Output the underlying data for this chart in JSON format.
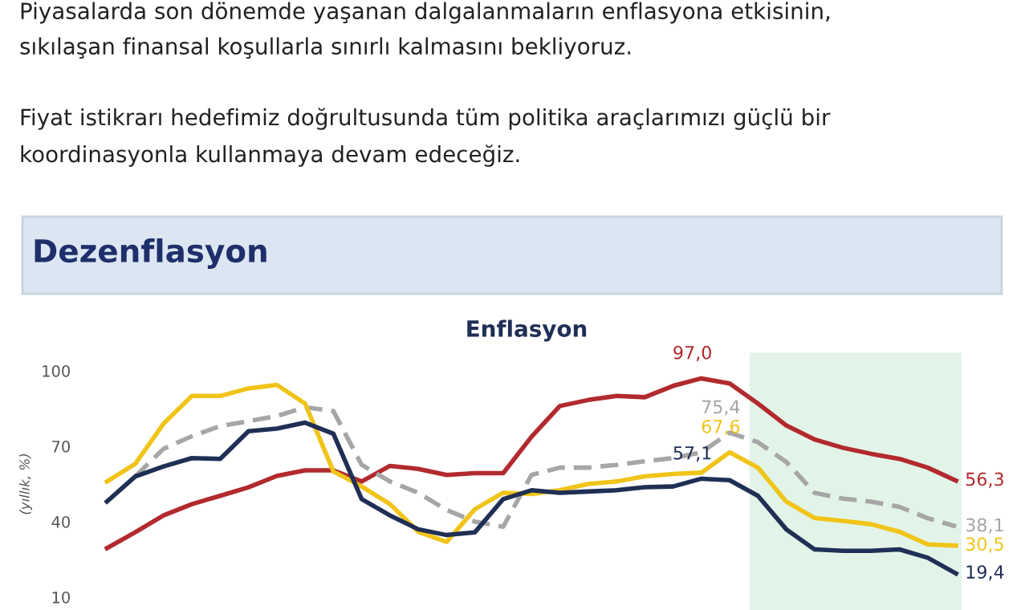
{
  "chart_data": {
    "type": "line",
    "title": "Dezenflasyon",
    "subtitle": "Enflasyon",
    "ylabel": "(yıllık, %)",
    "annotations": [
      "Piyasalarda son dönemde yaşanan dalgalanmaların enflasyona etkisinin,",
      "sıkılaşan finansal koşullarla sınırlı kalmasını bekliyoruz.",
      "Fiyat istikrarı hedefimiz doğrultusunda tüm politika araçlarımızı güçlü bir",
      "koordinasyonla kullanmaya devam edeceğiz."
    ],
    "categories": [
      null,
      null,
      null,
      null,
      null,
      null,
      null,
      null,
      null,
      null,
      null,
      null,
      null,
      null,
      null,
      null,
      null,
      null,
      null,
      null,
      null,
      null,
      null,
      null,
      null,
      null,
      null,
      null,
      null,
      null,
      null
    ],
    "series": [
      {
        "color": "#b22a2e",
        "line_style": "solid",
        "values": [
          29.5,
          35.8,
          42.5,
          47,
          50.3,
          53.7,
          58.2,
          60.4,
          60.4,
          56,
          62.2,
          61,
          58.6,
          59.3,
          59.3,
          73.8,
          86,
          88.4,
          90,
          89.5,
          94,
          97.0,
          95,
          87,
          78.3,
          72.7,
          69.4,
          67,
          65,
          61.5,
          56.3
        ],
        "value_labels": [
          null,
          null,
          null,
          null,
          null,
          null,
          null,
          null,
          null,
          null,
          null,
          null,
          null,
          null,
          null,
          null,
          null,
          null,
          null,
          null,
          null,
          "97,0",
          null,
          null,
          null,
          null,
          null,
          null,
          null,
          null,
          "56,3"
        ]
      },
      {
        "color": "#a6a6a6",
        "line_style": "dashed",
        "values": [
          null,
          58,
          69,
          74,
          78,
          80,
          82,
          85.5,
          84,
          62.6,
          56,
          51.5,
          44.7,
          40,
          38,
          58.6,
          61.5,
          61.5,
          62.6,
          64,
          65.3,
          67.6,
          75.4,
          71.6,
          63.8,
          51.5,
          49.2,
          48,
          45.9,
          41.4,
          38.1
        ],
        "value_labels": [
          null,
          null,
          null,
          null,
          null,
          null,
          null,
          null,
          null,
          null,
          null,
          null,
          null,
          null,
          null,
          null,
          null,
          null,
          null,
          null,
          null,
          null,
          "75,4",
          null,
          null,
          null,
          null,
          null,
          null,
          null,
          "38,1"
        ]
      },
      {
        "color": "#f0c419",
        "line_style": "solid",
        "values": [
          56,
          63,
          79,
          90,
          90,
          93,
          94.4,
          87,
          60,
          54,
          47,
          36,
          32,
          45,
          51.5,
          51,
          52.5,
          55,
          56,
          58,
          59,
          59.5,
          67.6,
          61.5,
          48,
          41.5,
          40.3,
          39,
          36,
          31,
          30.5
        ],
        "value_labels": [
          null,
          null,
          null,
          null,
          null,
          null,
          null,
          null,
          null,
          null,
          null,
          null,
          null,
          null,
          null,
          null,
          null,
          null,
          null,
          null,
          null,
          null,
          "67,6",
          null,
          null,
          null,
          null,
          null,
          null,
          null,
          "30,5"
        ]
      },
      {
        "color": "#1f2f55",
        "line_style": "solid",
        "values": [
          48,
          58,
          62,
          65.3,
          65,
          76,
          77,
          79.4,
          75,
          49,
          42.5,
          37,
          34.7,
          35.8,
          49,
          52.5,
          51.5,
          52,
          52.5,
          53.7,
          54,
          57.1,
          56.5,
          50.3,
          37,
          29,
          28.4,
          28.4,
          29,
          25.7,
          19.4
        ],
        "value_labels": [
          null,
          null,
          null,
          null,
          null,
          null,
          null,
          null,
          null,
          null,
          null,
          null,
          null,
          null,
          null,
          null,
          null,
          null,
          null,
          null,
          null,
          "57,1",
          null,
          null,
          null,
          null,
          null,
          null,
          null,
          null,
          "19,4"
        ]
      }
    ],
    "ylim": [
      10,
      100
    ],
    "yticks": [
      10,
      40,
      70,
      100
    ],
    "grid": false,
    "legend": false
  }
}
